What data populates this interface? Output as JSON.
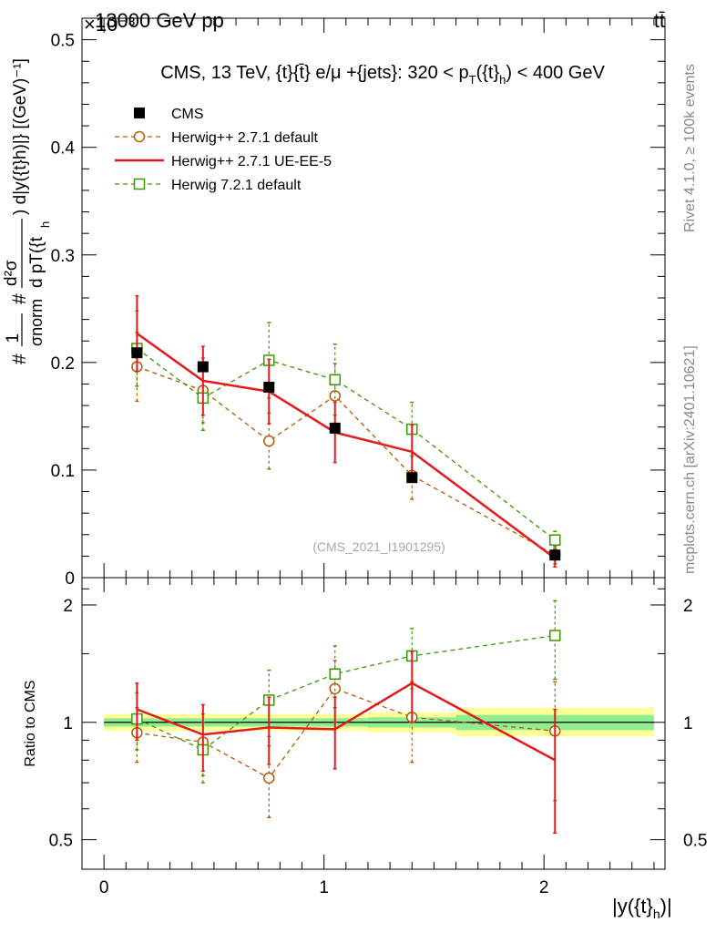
{
  "header": {
    "energy_label": "13000 GeV pp",
    "process_label": "tt̄",
    "exponent_label": "×10⁻³"
  },
  "side_labels": {
    "rivet": "Rivet 4.1.0, ≥ 100k events",
    "mcplots": "mcplots.cern.ch [arXiv:2401.10621]"
  },
  "chart_data": [
    {
      "type": "scatter",
      "panel": "main",
      "title": "CMS, 13 TeV, {t}{t̄} e/μ +{jets}: 320 <  p_T({t}_h) < 400 GeV",
      "xlabel": "|y({t}_h)|",
      "ylabel": "# 1/σ_norm # d²σ / d p_T({t}_h) d|y({t}_h)|} [(GeV)⁻¹]",
      "ylabel_display": {
        "hash": "#",
        "one": "1",
        "sigma_norm": "σnorm",
        "d2sigma": "d²σ",
        "dpt": "d pT({t",
        "h": "h",
        "rest": ") d|y({t}h)|} [(GeV)⁻¹]"
      },
      "xlim": [
        -0.1,
        2.55
      ],
      "ylim": [
        0.0,
        0.52
      ],
      "y_ticks": [
        0,
        0.1,
        0.2,
        0.3,
        0.4,
        0.5
      ],
      "y_tick_labels": [
        "0",
        "0.1",
        "0.2",
        "0.3",
        "0.4",
        "0.5"
      ],
      "annotation": "(CMS_2021_I1901295)",
      "legend_position": "top-left",
      "series": [
        {
          "name": "CMS",
          "color": "#000000",
          "marker": "filled-square",
          "x": [
            0.15,
            0.45,
            0.75,
            1.05,
            1.4,
            2.05
          ],
          "y": [
            0.209,
            0.196,
            0.177,
            0.139,
            0.093,
            0.021
          ],
          "yerr": [
            0.0,
            0.0,
            0.0,
            0.0,
            0.0,
            0.0
          ]
        },
        {
          "name": "Herwig++ 2.7.1 default",
          "color": "#b35a00",
          "marker": "open-circle",
          "line": "dashed",
          "x": [
            0.15,
            0.45,
            0.75,
            1.05,
            1.4,
            2.05
          ],
          "y": [
            0.196,
            0.174,
            0.127,
            0.169,
            0.095,
            0.021
          ],
          "yerr": [
            0.032,
            0.03,
            0.026,
            0.03,
            0.022,
            0.008
          ]
        },
        {
          "name": "Herwig++ 2.7.1 UE-EE-5",
          "color": "#e41a1c",
          "marker": "none",
          "line": "solid",
          "x": [
            0.15,
            0.45,
            0.75,
            1.05,
            1.4,
            2.05
          ],
          "y": [
            0.227,
            0.183,
            0.173,
            0.135,
            0.117,
            0.018
          ],
          "yerr": [
            0.035,
            0.032,
            0.03,
            0.028,
            0.025,
            0.008
          ]
        },
        {
          "name": "Herwig 7.2.1 default",
          "color": "#3a9a00",
          "marker": "open-square",
          "line": "dashed",
          "x": [
            0.15,
            0.45,
            0.75,
            1.05,
            1.4,
            2.05
          ],
          "y": [
            0.213,
            0.167,
            0.202,
            0.184,
            0.138,
            0.035
          ],
          "yerr": [
            0.035,
            0.03,
            0.035,
            0.033,
            0.025,
            0.008
          ]
        }
      ]
    },
    {
      "type": "scatter",
      "panel": "ratio",
      "xlabel": "|y({t}_h)|",
      "ylabel": "Ratio to CMS",
      "xlim": [
        -0.1,
        2.55
      ],
      "ylim": [
        0.42,
        2.35
      ],
      "yscale": "log",
      "x_ticks": [
        0,
        1,
        2
      ],
      "x_tick_labels": [
        "0",
        "1",
        "2"
      ],
      "y_ticks": [
        0.5,
        1,
        2
      ],
      "y_tick_labels": [
        "0.5",
        "1",
        "2"
      ],
      "reference_line": 1.0,
      "uncertainty_bands": [
        {
          "x0": 0.0,
          "x1": 0.3,
          "inner": [
            0.975,
            1.025
          ],
          "outer": [
            0.95,
            1.05
          ]
        },
        {
          "x0": 0.3,
          "x1": 0.6,
          "inner": [
            0.975,
            1.025
          ],
          "outer": [
            0.95,
            1.05
          ]
        },
        {
          "x0": 0.6,
          "x1": 0.9,
          "inner": [
            0.975,
            1.025
          ],
          "outer": [
            0.95,
            1.05
          ]
        },
        {
          "x0": 0.9,
          "x1": 1.2,
          "inner": [
            0.975,
            1.025
          ],
          "outer": [
            0.95,
            1.05
          ]
        },
        {
          "x0": 1.2,
          "x1": 1.6,
          "inner": [
            0.97,
            1.03
          ],
          "outer": [
            0.94,
            1.06
          ]
        },
        {
          "x0": 1.6,
          "x1": 2.5,
          "inner": [
            0.955,
            1.045
          ],
          "outer": [
            0.92,
            1.09
          ]
        }
      ],
      "band_colors": {
        "inner": "#90ee90",
        "outer": "#ffff99"
      },
      "series": [
        {
          "name": "Herwig++ 2.7.1 default",
          "color": "#b35a00",
          "marker": "open-circle",
          "line": "dashed",
          "x": [
            0.15,
            0.45,
            0.75,
            1.05,
            1.4,
            2.05
          ],
          "y": [
            0.94,
            0.89,
            0.72,
            1.22,
            1.03,
            0.95
          ],
          "yerr": [
            0.15,
            0.16,
            0.15,
            0.22,
            0.24,
            0.32
          ]
        },
        {
          "name": "Herwig++ 2.7.1 UE-EE-5",
          "color": "#e41a1c",
          "marker": "none",
          "line": "solid",
          "x": [
            0.15,
            0.45,
            0.75,
            1.05,
            1.4,
            2.05
          ],
          "y": [
            1.08,
            0.93,
            0.97,
            0.96,
            1.26,
            0.8
          ],
          "yerr": [
            0.18,
            0.18,
            0.19,
            0.2,
            0.26,
            0.28
          ]
        },
        {
          "name": "Herwig 7.2.1 default",
          "color": "#3a9a00",
          "marker": "open-square",
          "line": "dashed",
          "x": [
            0.15,
            0.45,
            0.75,
            1.05,
            1.4,
            2.05
          ],
          "y": [
            1.02,
            0.85,
            1.14,
            1.33,
            1.48,
            1.67
          ],
          "yerr": [
            0.17,
            0.15,
            0.22,
            0.24,
            0.26,
            0.38
          ]
        }
      ]
    }
  ]
}
